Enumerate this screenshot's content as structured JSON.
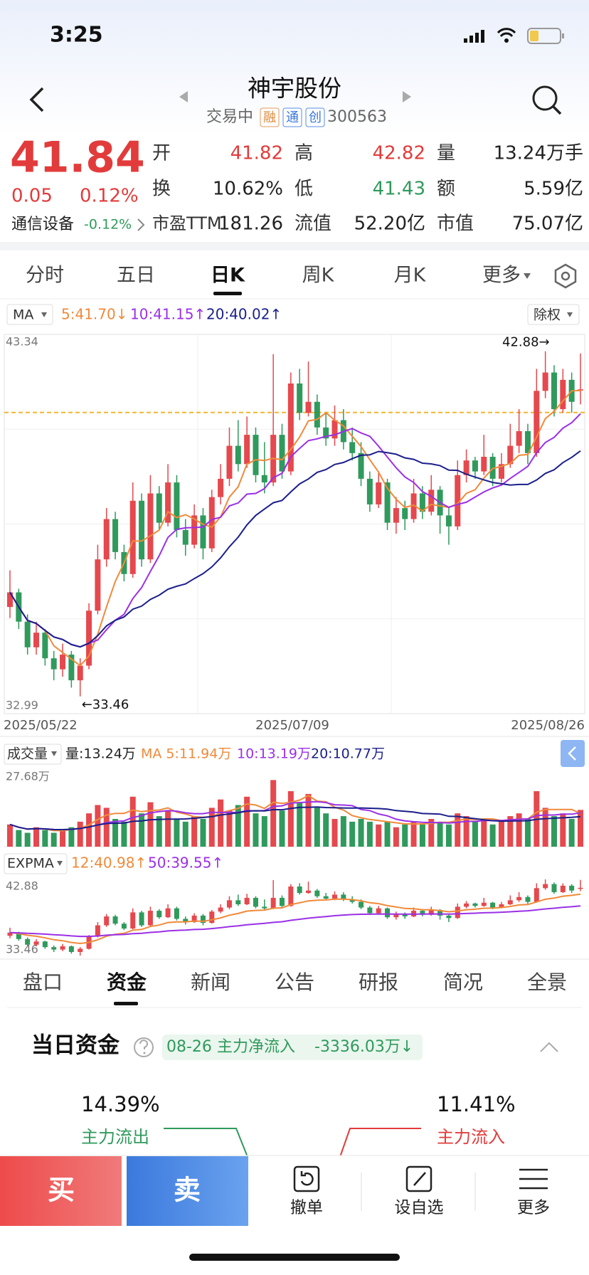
{
  "status": {
    "time": "3:25"
  },
  "header": {
    "title": "神宇股份",
    "status": "交易中",
    "badges": [
      "融",
      "通",
      "创"
    ],
    "code": "300563"
  },
  "quote": {
    "price": "41.84",
    "change": "0.05",
    "change_pct": "0.12%",
    "sector": "通信设备",
    "sector_pct": "-0.12%",
    "fields": [
      {
        "label": "开",
        "value": "41.82"
      },
      {
        "label": "高",
        "value": "42.82"
      },
      {
        "label": "量",
        "value": "13.24万手"
      },
      {
        "label": "换",
        "value": "10.62%"
      },
      {
        "label": "低",
        "value": "41.43"
      },
      {
        "label": "额",
        "value": "5.59亿"
      },
      {
        "label": "市盈TTM",
        "value": "181.26"
      },
      {
        "label": "流值",
        "value": "52.20亿"
      },
      {
        "label": "市值",
        "value": "75.07亿"
      }
    ]
  },
  "tabs": [
    "分时",
    "五日",
    "日K",
    "周K",
    "月K",
    "更多"
  ],
  "kline": {
    "type": "candlestick",
    "ma_label": "MA",
    "ma_legend": [
      "5:41.70↓",
      "10:41.15↑",
      "20:40.02↑"
    ],
    "adjust": "除权",
    "ylim": [
      32.99,
      43.34
    ],
    "yticks": [
      32.99,
      43.34
    ],
    "high_label": "42.88→",
    "low_label": "←33.46",
    "dashed_line": 41.21,
    "dates": [
      "2025/05/22",
      "2025/07/09",
      "2025/08/26"
    ],
    "candles": [
      [
        35.9,
        36.9,
        35.6,
        36.3
      ],
      [
        36.3,
        36.4,
        35.3,
        35.5
      ],
      [
        35.5,
        35.7,
        34.6,
        34.8
      ],
      [
        34.8,
        35.5,
        34.6,
        35.2
      ],
      [
        35.2,
        35.3,
        34.3,
        34.5
      ],
      [
        34.5,
        34.7,
        33.9,
        34.2
      ],
      [
        34.2,
        34.9,
        34.0,
        34.6
      ],
      [
        34.6,
        34.7,
        33.7,
        33.9
      ],
      [
        33.9,
        34.5,
        33.46,
        34.3
      ],
      [
        34.3,
        36.0,
        34.2,
        35.8
      ],
      [
        35.8,
        37.6,
        35.7,
        37.2
      ],
      [
        37.2,
        38.6,
        37.0,
        38.3
      ],
      [
        38.3,
        38.5,
        37.2,
        37.4
      ],
      [
        37.4,
        37.6,
        36.6,
        36.8
      ],
      [
        36.8,
        39.3,
        36.7,
        38.8
      ],
      [
        38.8,
        39.0,
        37.0,
        37.2
      ],
      [
        37.2,
        39.5,
        37.1,
        39.0
      ],
      [
        39.0,
        39.2,
        38.0,
        38.2
      ],
      [
        38.2,
        39.8,
        38.1,
        39.3
      ],
      [
        39.3,
        39.5,
        37.8,
        38.0
      ],
      [
        38.0,
        38.3,
        37.3,
        37.6
      ],
      [
        37.6,
        38.7,
        37.5,
        38.4
      ],
      [
        38.4,
        38.6,
        37.2,
        37.5
      ],
      [
        37.5,
        39.1,
        37.4,
        38.9
      ],
      [
        38.9,
        39.8,
        38.7,
        39.4
      ],
      [
        39.4,
        40.8,
        39.2,
        40.3
      ],
      [
        40.3,
        41.0,
        39.6,
        39.8
      ],
      [
        39.8,
        41.1,
        39.7,
        40.6
      ],
      [
        40.6,
        40.8,
        39.3,
        39.5
      ],
      [
        39.5,
        40.4,
        39.0,
        39.3
      ],
      [
        39.3,
        42.8,
        39.2,
        40.6
      ],
      [
        40.6,
        40.9,
        39.4,
        39.6
      ],
      [
        39.6,
        42.3,
        39.5,
        42.0
      ],
      [
        42.0,
        42.4,
        41.0,
        41.2
      ],
      [
        41.2,
        42.6,
        41.1,
        41.5
      ],
      [
        41.5,
        41.7,
        40.6,
        40.8
      ],
      [
        40.8,
        41.2,
        40.3,
        40.5
      ],
      [
        40.5,
        41.4,
        40.3,
        41.0
      ],
      [
        41.0,
        41.3,
        40.2,
        40.4
      ],
      [
        40.4,
        40.8,
        39.9,
        40.1
      ],
      [
        40.1,
        40.4,
        39.2,
        39.4
      ],
      [
        39.4,
        39.6,
        38.5,
        38.7
      ],
      [
        38.7,
        39.6,
        38.6,
        39.3
      ],
      [
        39.3,
        39.4,
        38.0,
        38.2
      ],
      [
        38.2,
        38.9,
        37.9,
        38.6
      ],
      [
        38.6,
        38.8,
        38.0,
        38.3
      ],
      [
        38.3,
        39.4,
        38.2,
        39.0
      ],
      [
        39.0,
        39.2,
        38.3,
        38.5
      ],
      [
        38.5,
        39.5,
        38.4,
        39.1
      ],
      [
        39.1,
        39.2,
        37.9,
        38.4
      ],
      [
        38.4,
        38.6,
        37.6,
        38.1
      ],
      [
        38.1,
        39.9,
        38.0,
        39.5
      ],
      [
        39.5,
        40.2,
        39.3,
        39.9
      ],
      [
        39.9,
        40.0,
        39.4,
        39.6
      ],
      [
        39.6,
        40.6,
        39.5,
        40.0
      ],
      [
        40.0,
        40.1,
        39.2,
        39.4
      ],
      [
        39.4,
        40.1,
        39.3,
        39.8
      ],
      [
        39.8,
        40.9,
        39.7,
        40.3
      ],
      [
        40.3,
        41.3,
        40.1,
        40.7
      ],
      [
        40.7,
        40.9,
        39.8,
        40.1
      ],
      [
        40.1,
        42.4,
        40.0,
        41.8
      ],
      [
        41.8,
        42.88,
        41.6,
        42.3
      ],
      [
        42.3,
        42.5,
        41.1,
        41.3
      ],
      [
        41.3,
        42.4,
        41.2,
        42.1
      ],
      [
        42.1,
        42.3,
        41.2,
        41.5
      ],
      [
        41.82,
        42.82,
        41.43,
        41.84
      ]
    ]
  },
  "volume": {
    "title": "成交量",
    "legend": [
      "量:13.24万",
      "MA 5:11.94万",
      "10:13.19万",
      "20:10.77万"
    ],
    "ylim": [
      0,
      27.68
    ],
    "yticks": [
      {
        "value": 27.68,
        "label": "27.68万"
      }
    ],
    "values": [
      8,
      6,
      5,
      7,
      6,
      5,
      6,
      7,
      9,
      12,
      15,
      14,
      10,
      9,
      18,
      12,
      16,
      11,
      13,
      10,
      9,
      11,
      10,
      14,
      17,
      13,
      15,
      18,
      12,
      11,
      24,
      13,
      20,
      16,
      19,
      14,
      12,
      10,
      11,
      9,
      10,
      9,
      8,
      9,
      7,
      8,
      9,
      8,
      10,
      9,
      8,
      12,
      11,
      9,
      10,
      8,
      9,
      11,
      12,
      10,
      20,
      14,
      11,
      12,
      10,
      13.24
    ]
  },
  "expma": {
    "title": "EXPMA",
    "legend": [
      "12:40.98↑",
      "50:39.55↑"
    ],
    "ylim": [
      33.46,
      42.88
    ],
    "yticks": [
      33.46,
      42.88
    ]
  },
  "info_tabs": [
    "盘口",
    "资金",
    "新闻",
    "公告",
    "研报",
    "简况",
    "全景"
  ],
  "fund": {
    "title": "当日资金",
    "date": "08-26",
    "net_label": "主力净流入",
    "net_value": "-3336.03万↓",
    "out_pct": "14.39%",
    "out_label": "主力流出",
    "in_pct": "11.41%",
    "in_label": "主力流入"
  },
  "bottom": {
    "buy": "买",
    "sell": "卖",
    "actions": [
      "撤单",
      "设自选",
      "更多"
    ]
  }
}
